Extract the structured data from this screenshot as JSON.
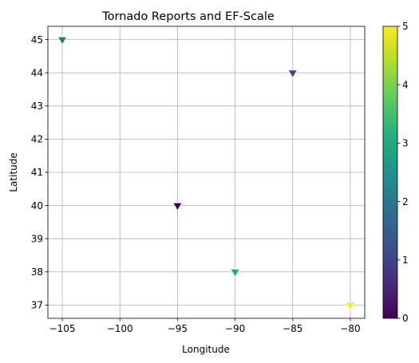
{
  "chart_data": {
    "type": "scatter",
    "title": "Tornado Reports and EF-Scale",
    "xlabel": "Longitude",
    "ylabel": "Latitude",
    "xlim": [
      -106.25,
      -78.75
    ],
    "ylim": [
      36.6,
      45.4
    ],
    "xticks": [
      -105,
      -100,
      -95,
      -90,
      -85,
      -80
    ],
    "xtick_labels": [
      "−105",
      "−100",
      "−95",
      "−90",
      "−85",
      "−80"
    ],
    "yticks": [
      37,
      38,
      39,
      40,
      41,
      42,
      43,
      44,
      45
    ],
    "ytick_labels": [
      "37",
      "38",
      "39",
      "40",
      "41",
      "42",
      "43",
      "44",
      "45"
    ],
    "grid": true,
    "marker": "triangle-down",
    "colormap": "viridis",
    "points": [
      {
        "x": -95,
        "y": 40,
        "ef": 0
      },
      {
        "x": -85,
        "y": 44,
        "ef": 1
      },
      {
        "x": -105,
        "y": 45,
        "ef": 2
      },
      {
        "x": -90,
        "y": 38,
        "ef": 3
      },
      {
        "x": -80,
        "y": 37,
        "ef": 5
      }
    ],
    "colorbar": {
      "min": 0,
      "max": 5,
      "ticks": [
        0,
        1,
        2,
        3,
        4,
        5
      ],
      "tick_labels": [
        "0",
        "1",
        "2",
        "3",
        "4",
        "5"
      ]
    }
  }
}
